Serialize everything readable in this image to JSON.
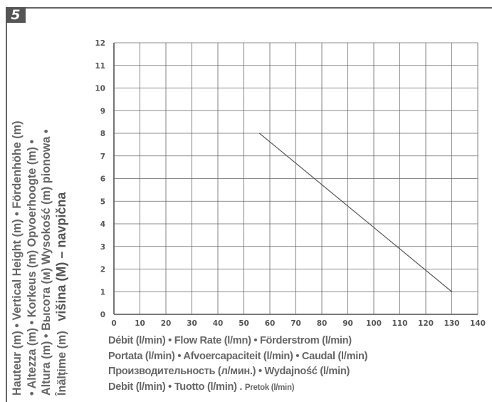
{
  "badge": "5",
  "ylabel_lines": [
    "Hauteur (m) • Vertical Height (m) • Fördenhöhe (m)",
    "• Altezza (m) • Korkeus (m) Opvoerhoogte (m) •",
    "Altura (m) • Высота (м) Wysokość (m) pionowa •",
    "Înălțime (m)",
    "višina (M) – navpična"
  ],
  "xlabel_lines": [
    "Débit (l/min) • Flow Rate (l/mn) • Förderstrom (l/min)",
    "Portata (l/min) • Afvoercapaciteit (l/min) • Caudal (l/min)",
    "Производительность (л/мин.) • Wydajność (l/min)",
    "Debit (l/min)  • Tuotto (l/min) . ",
    "Pretok (l/min)"
  ],
  "chart_data": {
    "type": "line",
    "x": [
      56,
      130
    ],
    "series": [
      {
        "values": [
          8,
          1
        ]
      }
    ],
    "xlim": [
      0,
      140
    ],
    "ylim": [
      0,
      12
    ],
    "xticks": [
      "0",
      "10",
      "20",
      "30",
      "40",
      "50",
      "60",
      "70",
      "80",
      "90",
      "100",
      "110",
      "120",
      "130",
      "140"
    ],
    "yticks": [
      "0",
      "1",
      "2",
      "3",
      "4",
      "5",
      "6",
      "7",
      "8",
      "9",
      "10",
      "11",
      "12"
    ],
    "grid": true
  },
  "colors": {
    "frame": "#666666",
    "grid": "#666666",
    "line": "#555555",
    "text": "#555555"
  }
}
